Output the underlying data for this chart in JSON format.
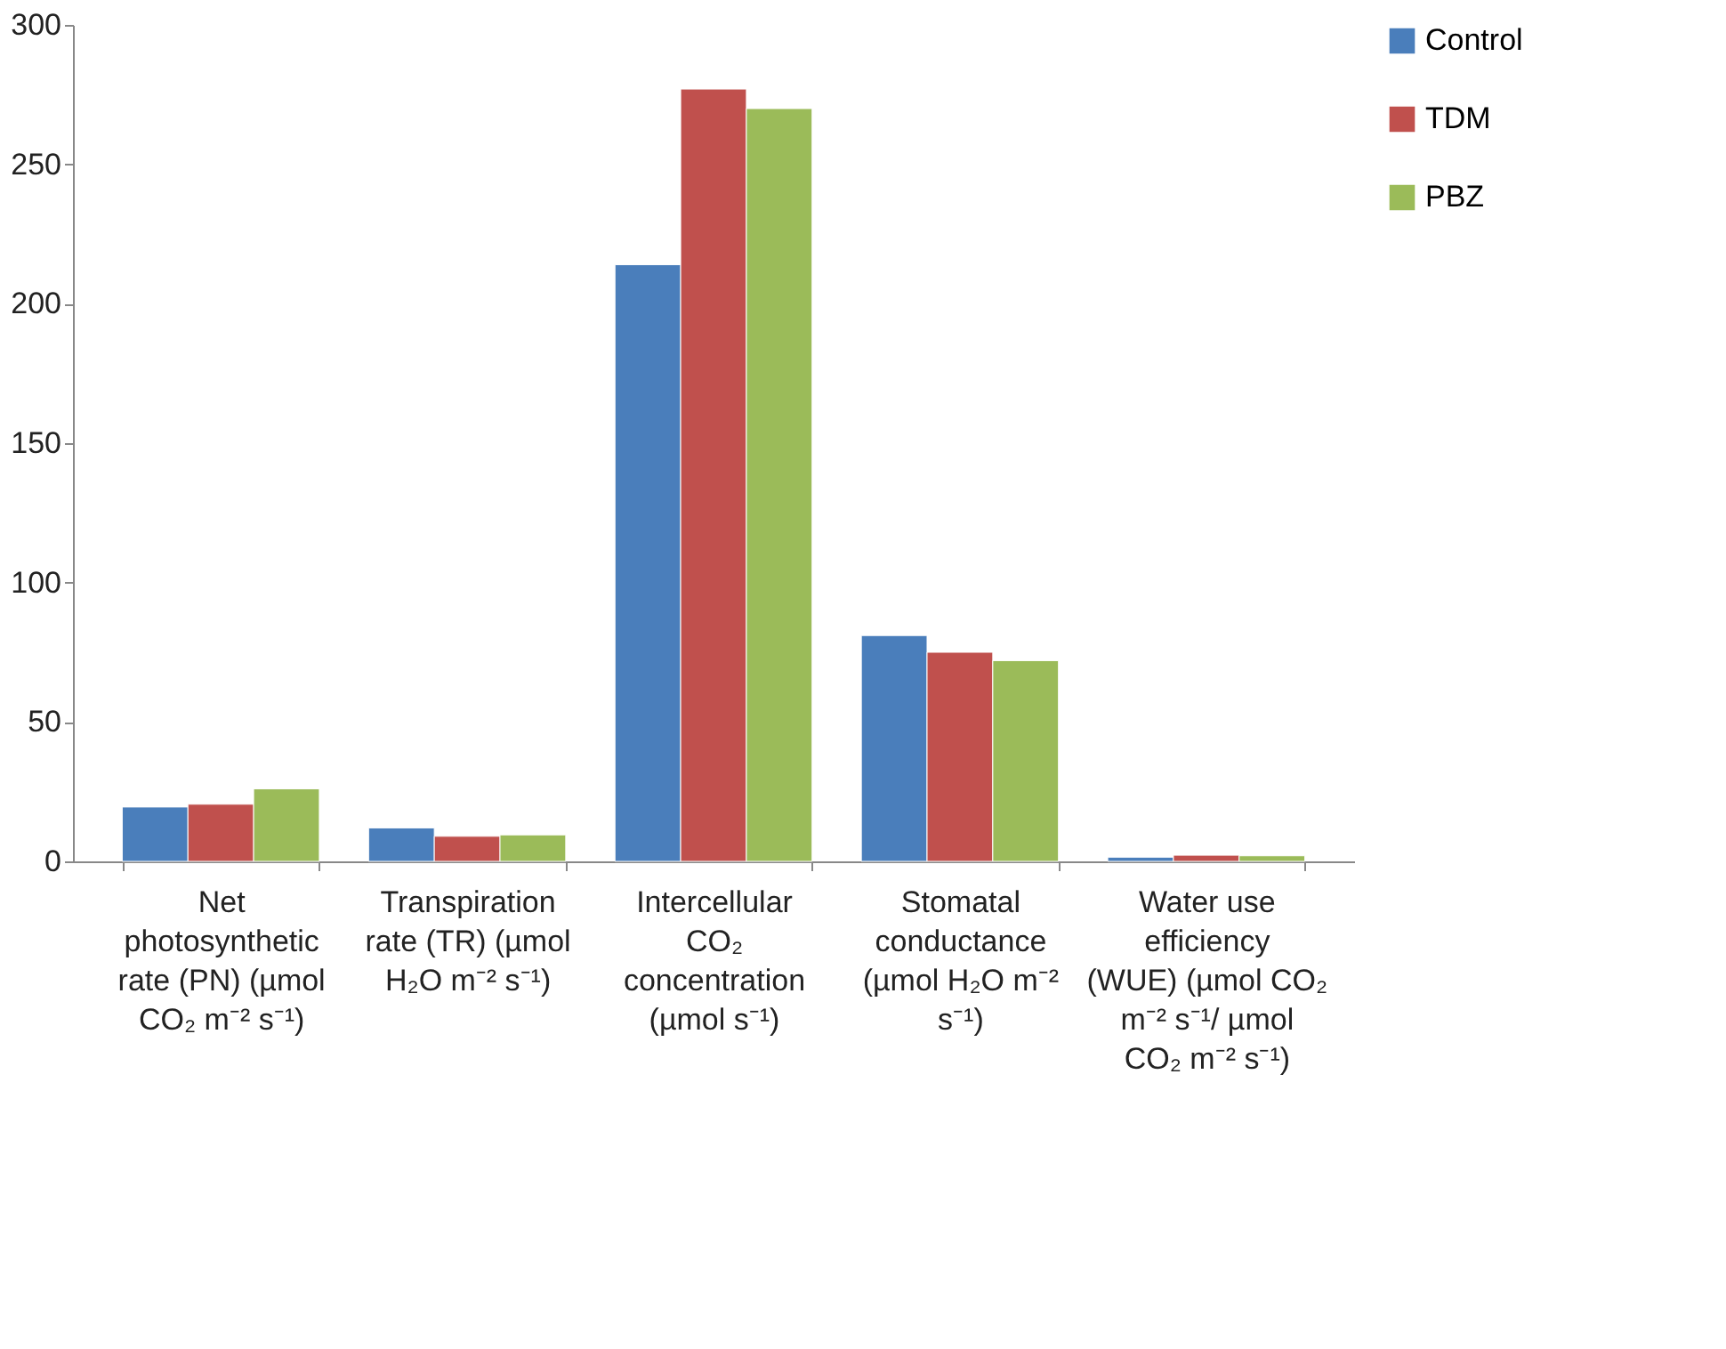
{
  "chart_data": {
    "type": "bar",
    "categories": [
      "Net photosynthetic rate (PN) (µmol CO₂ m⁻² s⁻¹)",
      "Transpiration rate (TR) (µmol H₂O m⁻² s⁻¹)",
      "Intercellular CO₂ concentration (µmol s⁻¹)",
      "Stomatal conductance (µmol H₂O m⁻² s⁻¹)",
      "Water use efficiency (WUE) (µmol CO₂ m⁻² s⁻¹/ µmol CO₂ m⁻² s⁻¹)"
    ],
    "series": [
      {
        "name": "Control",
        "color": "#4a7ebb",
        "values": [
          19.5,
          12,
          214,
          81,
          1.5
        ]
      },
      {
        "name": "TDM",
        "color": "#c0504d",
        "values": [
          20.5,
          9,
          277,
          75,
          2.2
        ]
      },
      {
        "name": "PBZ",
        "color": "#9bbb59",
        "values": [
          26,
          9.5,
          270,
          72,
          2
        ]
      }
    ],
    "ylim": [
      0,
      300
    ],
    "yticks": [
      0,
      50,
      100,
      150,
      200,
      250,
      300
    ],
    "grid": false,
    "legend": "right"
  }
}
